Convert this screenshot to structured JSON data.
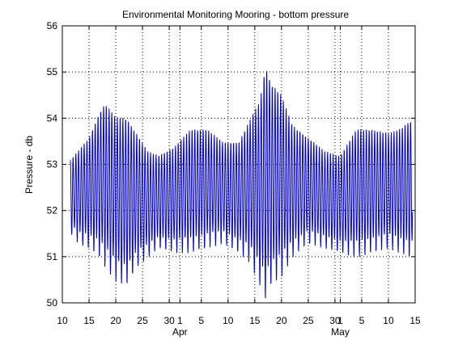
{
  "chart_data": {
    "type": "line",
    "title": "Environmental Monitoring Mooring - bottom pressure",
    "ylabel": "Pressure - db",
    "xlabel": "",
    "xlim": [
      "2008-03-10",
      "2008-05-15"
    ],
    "ylim": [
      50,
      56
    ],
    "grid": true,
    "line_color": "#0000cc",
    "yticks": [
      50,
      51,
      52,
      53,
      54,
      55,
      56
    ],
    "xticks": [
      {
        "date": "2008-03-10",
        "label": "10"
      },
      {
        "date": "2008-03-15",
        "label": "15"
      },
      {
        "date": "2008-03-20",
        "label": "20"
      },
      {
        "date": "2008-03-25",
        "label": "25"
      },
      {
        "date": "2008-03-30",
        "label": "30"
      },
      {
        "date": "2008-04-01",
        "label": "1"
      },
      {
        "date": "2008-04-05",
        "label": "5"
      },
      {
        "date": "2008-04-10",
        "label": "10"
      },
      {
        "date": "2008-04-15",
        "label": "15"
      },
      {
        "date": "2008-04-20",
        "label": "20"
      },
      {
        "date": "2008-04-25",
        "label": "25"
      },
      {
        "date": "2008-04-30",
        "label": "30"
      },
      {
        "date": "2008-05-01",
        "label": "1"
      },
      {
        "date": "2008-05-05",
        "label": "5"
      },
      {
        "date": "2008-05-10",
        "label": "10"
      },
      {
        "date": "2008-05-15",
        "label": "15"
      }
    ],
    "month_labels": [
      {
        "date": "2008-04-01",
        "label": "Apr"
      },
      {
        "date": "2008-05-01",
        "label": "May"
      }
    ],
    "series": [
      {
        "start": "2008-03-11T12:00",
        "end": "2008-05-14T12:00",
        "envelope": [
          {
            "date": "2008-03-11",
            "max": 53.1,
            "min": 51.6
          },
          {
            "date": "2008-03-13",
            "max": 53.4,
            "min": 51.3
          },
          {
            "date": "2008-03-15",
            "max": 53.7,
            "min": 51.2
          },
          {
            "date": "2008-03-17",
            "max": 54.3,
            "min": 51.0
          },
          {
            "date": "2008-03-18",
            "max": 54.5,
            "min": 50.8
          },
          {
            "date": "2008-03-20",
            "max": 54.2,
            "min": 50.5
          },
          {
            "date": "2008-03-22",
            "max": 54.2,
            "min": 50.4
          },
          {
            "date": "2008-03-24",
            "max": 53.8,
            "min": 50.8
          },
          {
            "date": "2008-03-26",
            "max": 53.4,
            "min": 51.0
          },
          {
            "date": "2008-03-28",
            "max": 53.3,
            "min": 51.2
          },
          {
            "date": "2008-03-31",
            "max": 53.5,
            "min": 51.1
          },
          {
            "date": "2008-04-03",
            "max": 53.9,
            "min": 51.1
          },
          {
            "date": "2008-04-06",
            "max": 53.9,
            "min": 51.2
          },
          {
            "date": "2008-04-09",
            "max": 53.6,
            "min": 51.3
          },
          {
            "date": "2008-04-12",
            "max": 53.6,
            "min": 51.1
          },
          {
            "date": "2008-04-14",
            "max": 54.1,
            "min": 50.9
          },
          {
            "date": "2008-04-16",
            "max": 54.6,
            "min": 50.4
          },
          {
            "date": "2008-04-17",
            "max": 55.4,
            "min": 50.1
          },
          {
            "date": "2008-04-18",
            "max": 55.0,
            "min": 50.4
          },
          {
            "date": "2008-04-20",
            "max": 54.7,
            "min": 50.6
          },
          {
            "date": "2008-04-22",
            "max": 54.0,
            "min": 51.0
          },
          {
            "date": "2008-04-25",
            "max": 53.7,
            "min": 51.3
          },
          {
            "date": "2008-04-28",
            "max": 53.4,
            "min": 51.2
          },
          {
            "date": "2008-05-01",
            "max": 53.3,
            "min": 51.1
          },
          {
            "date": "2008-05-04",
            "max": 53.9,
            "min": 51.0
          },
          {
            "date": "2008-05-07",
            "max": 53.9,
            "min": 51.1
          },
          {
            "date": "2008-05-10",
            "max": 53.8,
            "min": 51.2
          },
          {
            "date": "2008-05-12",
            "max": 53.9,
            "min": 51.1
          },
          {
            "date": "2008-05-14",
            "max": 54.1,
            "min": 51.0
          }
        ]
      }
    ]
  }
}
